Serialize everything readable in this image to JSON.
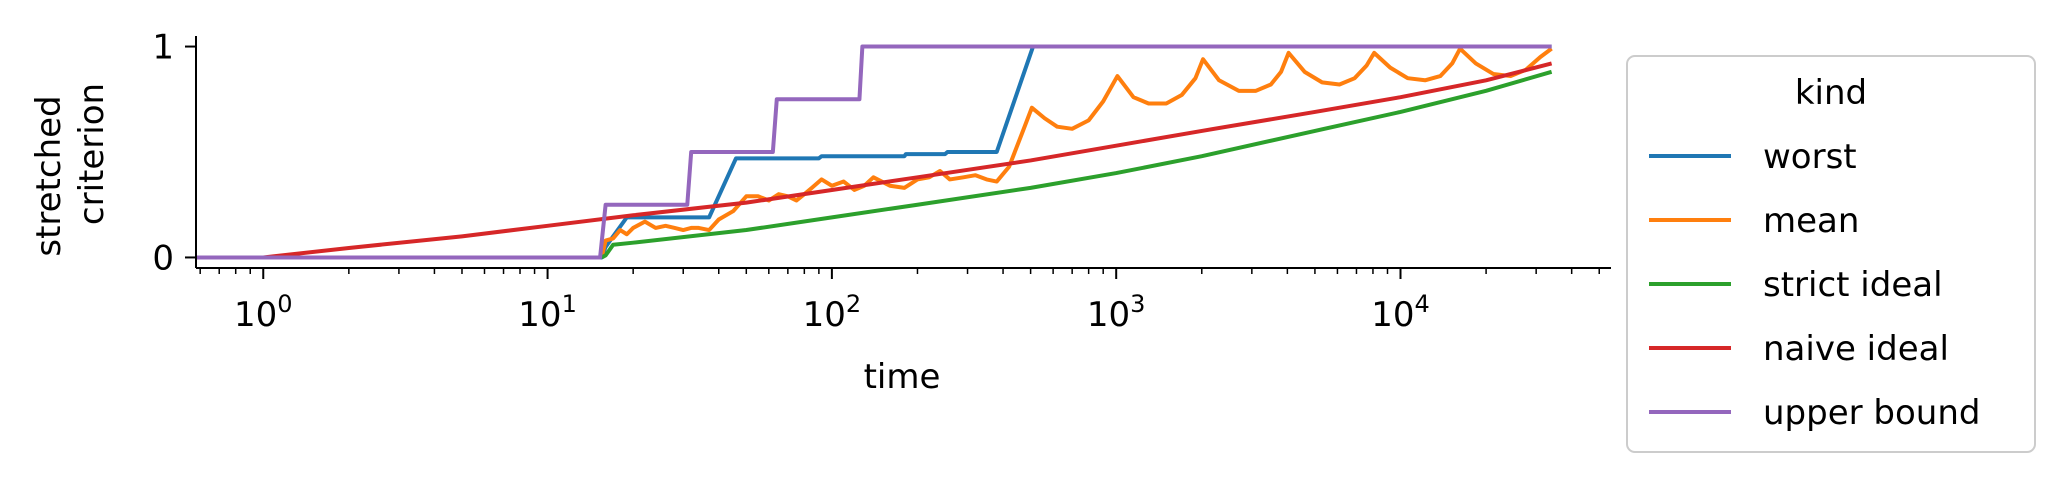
{
  "chart_data": {
    "type": "line",
    "xlabel": "time",
    "ylabel": [
      "stretched",
      "criterion"
    ],
    "xscale": "log",
    "xlim": [
      0.58,
      55000
    ],
    "ylim": [
      -0.05,
      1.05
    ],
    "x_ticks": [
      {
        "base": "10",
        "exp": "0",
        "value": 1
      },
      {
        "base": "10",
        "exp": "1",
        "value": 10
      },
      {
        "base": "10",
        "exp": "2",
        "value": 100
      },
      {
        "base": "10",
        "exp": "3",
        "value": 1000
      },
      {
        "base": "10",
        "exp": "4",
        "value": 10000
      }
    ],
    "y_ticks": [
      {
        "label": "0",
        "value": 0
      },
      {
        "label": "1",
        "value": 1
      }
    ],
    "legend": {
      "title": "kind",
      "position": "outside-right"
    },
    "series": [
      {
        "name": "worst",
        "color": "#1f77b4",
        "points": [
          [
            0.58,
            0
          ],
          [
            15.5,
            0
          ],
          [
            16,
            0.05
          ],
          [
            17,
            0.1
          ],
          [
            19,
            0.19
          ],
          [
            37,
            0.19
          ],
          [
            46,
            0.47
          ],
          [
            90,
            0.47
          ],
          [
            92,
            0.48
          ],
          [
            180,
            0.48
          ],
          [
            182,
            0.49
          ],
          [
            250,
            0.49
          ],
          [
            255,
            0.5
          ],
          [
            380,
            0.5
          ],
          [
            510,
            1
          ],
          [
            34000,
            1
          ]
        ]
      },
      {
        "name": "mean",
        "color": "#ff7f0e",
        "points": [
          [
            15.5,
            0
          ],
          [
            16,
            0.08
          ],
          [
            17,
            0.09
          ],
          [
            18,
            0.13
          ],
          [
            19,
            0.11
          ],
          [
            20,
            0.14
          ],
          [
            22,
            0.17
          ],
          [
            24,
            0.14
          ],
          [
            26,
            0.15
          ],
          [
            28,
            0.14
          ],
          [
            30,
            0.13
          ],
          [
            32,
            0.14
          ],
          [
            34,
            0.14
          ],
          [
            37,
            0.13
          ],
          [
            40,
            0.18
          ],
          [
            45,
            0.22
          ],
          [
            50,
            0.29
          ],
          [
            55,
            0.29
          ],
          [
            60,
            0.27
          ],
          [
            65,
            0.3
          ],
          [
            70,
            0.29
          ],
          [
            75,
            0.27
          ],
          [
            80,
            0.3
          ],
          [
            85,
            0.33
          ],
          [
            92,
            0.37
          ],
          [
            100,
            0.34
          ],
          [
            110,
            0.36
          ],
          [
            120,
            0.32
          ],
          [
            130,
            0.34
          ],
          [
            140,
            0.38
          ],
          [
            160,
            0.34
          ],
          [
            180,
            0.33
          ],
          [
            200,
            0.37
          ],
          [
            220,
            0.38
          ],
          [
            240,
            0.41
          ],
          [
            260,
            0.37
          ],
          [
            290,
            0.38
          ],
          [
            320,
            0.39
          ],
          [
            350,
            0.37
          ],
          [
            380,
            0.36
          ],
          [
            420,
            0.43
          ],
          [
            470,
            0.6
          ],
          [
            505,
            0.71
          ],
          [
            560,
            0.66
          ],
          [
            620,
            0.62
          ],
          [
            700,
            0.61
          ],
          [
            800,
            0.65
          ],
          [
            900,
            0.74
          ],
          [
            1010,
            0.86
          ],
          [
            1150,
            0.76
          ],
          [
            1300,
            0.73
          ],
          [
            1500,
            0.73
          ],
          [
            1700,
            0.77
          ],
          [
            1900,
            0.85
          ],
          [
            2020,
            0.94
          ],
          [
            2300,
            0.84
          ],
          [
            2700,
            0.79
          ],
          [
            3100,
            0.79
          ],
          [
            3500,
            0.82
          ],
          [
            3800,
            0.88
          ],
          [
            4040,
            0.97
          ],
          [
            4600,
            0.88
          ],
          [
            5300,
            0.83
          ],
          [
            6100,
            0.82
          ],
          [
            6900,
            0.85
          ],
          [
            7600,
            0.91
          ],
          [
            8080,
            0.97
          ],
          [
            9200,
            0.9
          ],
          [
            10600,
            0.85
          ],
          [
            12200,
            0.84
          ],
          [
            13800,
            0.86
          ],
          [
            15200,
            0.92
          ],
          [
            16200,
            0.99
          ],
          [
            18400,
            0.92
          ],
          [
            21200,
            0.87
          ],
          [
            24400,
            0.86
          ],
          [
            27600,
            0.89
          ],
          [
            31000,
            0.95
          ],
          [
            34000,
            0.99
          ]
        ]
      },
      {
        "name": "strict ideal",
        "color": "#2ca02c",
        "points": [
          [
            15.5,
            0
          ],
          [
            16,
            0.01
          ],
          [
            17,
            0.06
          ],
          [
            20,
            0.07
          ],
          [
            50,
            0.13
          ],
          [
            100,
            0.19
          ],
          [
            200,
            0.25
          ],
          [
            500,
            0.33
          ],
          [
            1000,
            0.4
          ],
          [
            2000,
            0.48
          ],
          [
            5000,
            0.6
          ],
          [
            10000,
            0.69
          ],
          [
            20000,
            0.79
          ],
          [
            34000,
            0.88
          ]
        ]
      },
      {
        "name": "naive ideal",
        "color": "#d62728",
        "points": [
          [
            1,
            0
          ],
          [
            2,
            0.045
          ],
          [
            5,
            0.1
          ],
          [
            10,
            0.15
          ],
          [
            20,
            0.2
          ],
          [
            50,
            0.26
          ],
          [
            100,
            0.32
          ],
          [
            200,
            0.38
          ],
          [
            500,
            0.46
          ],
          [
            1000,
            0.53
          ],
          [
            2000,
            0.6
          ],
          [
            5000,
            0.69
          ],
          [
            10000,
            0.76
          ],
          [
            20000,
            0.84
          ],
          [
            34000,
            0.92
          ]
        ]
      },
      {
        "name": "upper bound",
        "color": "#9467bd",
        "points": [
          [
            0.58,
            0
          ],
          [
            15.3,
            0
          ],
          [
            16,
            0.25
          ],
          [
            31,
            0.25
          ],
          [
            32,
            0.5
          ],
          [
            62,
            0.5
          ],
          [
            64,
            0.75
          ],
          [
            125,
            0.75
          ],
          [
            128,
            1
          ],
          [
            34000,
            1
          ]
        ]
      }
    ]
  }
}
